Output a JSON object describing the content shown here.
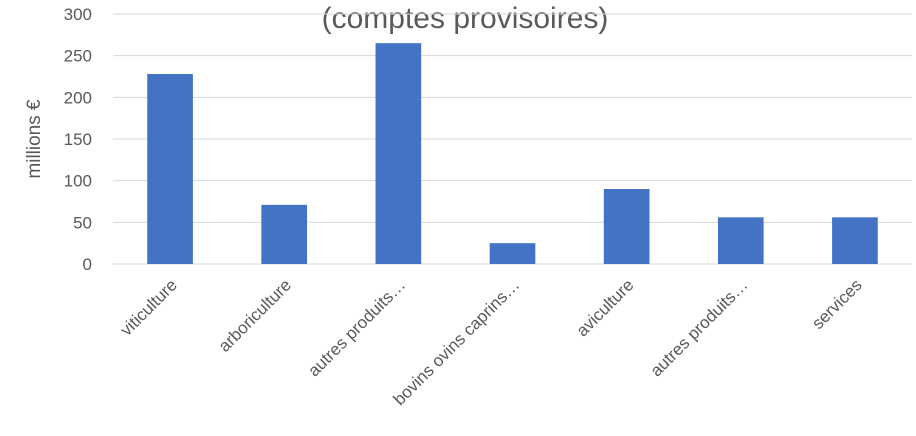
{
  "chart_data": {
    "type": "bar",
    "title": "(comptes provisoires)",
    "xlabel": "",
    "ylabel": "millions €",
    "ylim": [
      0,
      300
    ],
    "yticks": [
      0,
      50,
      100,
      150,
      200,
      250,
      300
    ],
    "grid": true,
    "categories": [
      "viticulture",
      "arboriculture",
      "autres produits…",
      "bovins ovins caprins…",
      "aviculture",
      "autres produits…",
      "services"
    ],
    "values": [
      228,
      71,
      265,
      25,
      90,
      56,
      56
    ],
    "colors": {
      "bar": "#4472C4",
      "grid": "#D9D9D9",
      "text": "#595959"
    }
  }
}
